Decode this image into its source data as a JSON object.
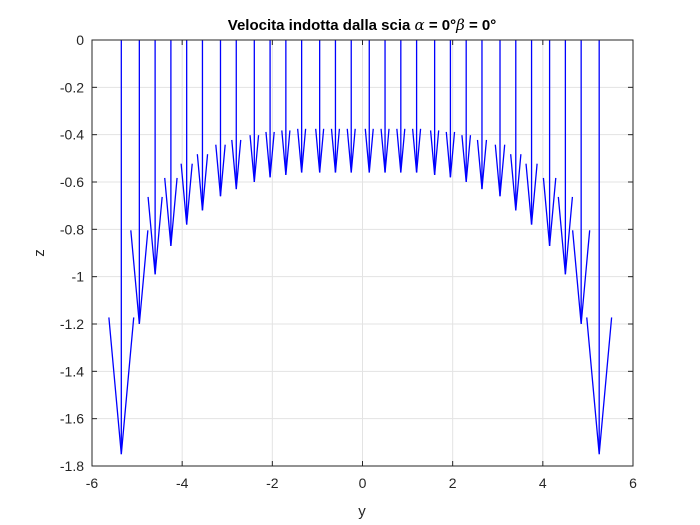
{
  "chart_data": {
    "type": "quiver",
    "title": "Velocita indotta dalla scia",
    "title_symbols": {
      "alpha_symbol": "α",
      "alpha_text": " = 0°",
      "beta_symbol": "β",
      "beta_text": " = 0°"
    },
    "xlabel": "y",
    "ylabel": "z",
    "xlim": [
      -6,
      6
    ],
    "ylim": [
      -1.8,
      0
    ],
    "xticks": [
      -6,
      -4,
      -2,
      0,
      2,
      4,
      6
    ],
    "yticks": [
      0,
      -0.2,
      -0.4,
      -0.6,
      -0.8,
      -1,
      -1.2,
      -1.4,
      -1.6,
      -1.8
    ],
    "xtick_labels": [
      "-6",
      "-4",
      "-2",
      "0",
      "2",
      "4",
      "6"
    ],
    "ytick_labels": [
      "0",
      "-0.2",
      "-0.4",
      "-0.6",
      "-0.8",
      "-1",
      "-1.2",
      "-1.4",
      "-1.6",
      "-1.8"
    ],
    "grid": true,
    "arrow_color": "#0000ff",
    "arrows": {
      "y": [
        -5.35,
        -4.95,
        -4.6,
        -4.25,
        -3.9,
        -3.55,
        -3.15,
        -2.8,
        -2.4,
        -2.05,
        -1.7,
        -1.35,
        -0.95,
        -0.6,
        -0.25,
        0.15,
        0.5,
        0.85,
        1.2,
        1.6,
        1.95,
        2.3,
        2.65,
        3.05,
        3.4,
        3.75,
        4.15,
        4.5,
        4.85,
        5.25
      ],
      "z_start": [
        0,
        0,
        0,
        0,
        0,
        0,
        0,
        0,
        0,
        0,
        0,
        0,
        0,
        0,
        0,
        0,
        0,
        0,
        0,
        0,
        0,
        0,
        0,
        0,
        0,
        0,
        0,
        0,
        0,
        0
      ],
      "z_tip": [
        -1.75,
        -1.2,
        -0.99,
        -0.87,
        -0.78,
        -0.72,
        -0.66,
        -0.63,
        -0.6,
        -0.58,
        -0.57,
        -0.56,
        -0.56,
        -0.56,
        -0.56,
        -0.56,
        -0.56,
        -0.56,
        -0.56,
        -0.57,
        -0.58,
        -0.6,
        -0.63,
        -0.66,
        -0.72,
        -0.78,
        -0.87,
        -0.99,
        -1.2,
        -1.75
      ]
    }
  }
}
